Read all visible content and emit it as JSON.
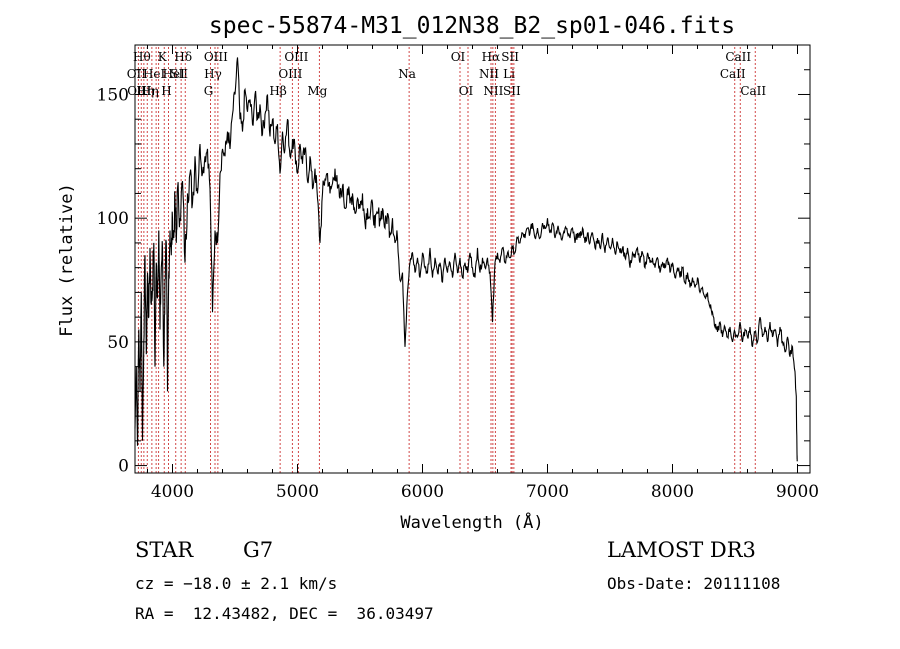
{
  "chart_data": {
    "type": "line",
    "title": "spec-55874-M31_012N38_B2_sp01-046.fits",
    "xlabel": "Wavelength (Å)",
    "ylabel": "Flux (relative)",
    "xlim": [
      3700,
      9100
    ],
    "ylim": [
      -3,
      170
    ],
    "xticks": [
      4000,
      5000,
      6000,
      7000,
      8000,
      9000
    ],
    "yticks": [
      0,
      50,
      100,
      150
    ],
    "grid": false,
    "series": [
      {
        "name": "flux",
        "points": [
          [
            3700,
            15
          ],
          [
            3710,
            40
          ],
          [
            3720,
            8
          ],
          [
            3730,
            55
          ],
          [
            3740,
            30
          ],
          [
            3750,
            70
          ],
          [
            3760,
            10
          ],
          [
            3770,
            50
          ],
          [
            3780,
            85
          ],
          [
            3790,
            45
          ],
          [
            3800,
            78
          ],
          [
            3810,
            60
          ],
          [
            3820,
            88
          ],
          [
            3830,
            65
          ],
          [
            3840,
            72
          ],
          [
            3850,
            90
          ],
          [
            3860,
            40
          ],
          [
            3870,
            82
          ],
          [
            3880,
            68
          ],
          [
            3890,
            95
          ],
          [
            3900,
            55
          ],
          [
            3910,
            80
          ],
          [
            3920,
            88
          ],
          [
            3930,
            40
          ],
          [
            3940,
            75
          ],
          [
            3950,
            90
          ],
          [
            3960,
            30
          ],
          [
            3970,
            78
          ],
          [
            3980,
            95
          ],
          [
            3990,
            85
          ],
          [
            4000,
            100
          ],
          [
            4010,
            92
          ],
          [
            4020,
            108
          ],
          [
            4030,
            90
          ],
          [
            4040,
            112
          ],
          [
            4060,
            100
          ],
          [
            4080,
            115
          ],
          [
            4100,
            82
          ],
          [
            4120,
            110
          ],
          [
            4140,
            118
          ],
          [
            4160,
            106
          ],
          [
            4180,
            125
          ],
          [
            4200,
            110
          ],
          [
            4220,
            130
          ],
          [
            4240,
            118
          ],
          [
            4260,
            125
          ],
          [
            4280,
            128
          ],
          [
            4300,
            112
          ],
          [
            4320,
            62
          ],
          [
            4340,
            95
          ],
          [
            4360,
            90
          ],
          [
            4380,
            118
          ],
          [
            4400,
            128
          ],
          [
            4420,
            125
          ],
          [
            4440,
            135
          ],
          [
            4460,
            128
          ],
          [
            4480,
            142
          ],
          [
            4500,
            150
          ],
          [
            4520,
            165
          ],
          [
            4540,
            140
          ],
          [
            4560,
            135
          ],
          [
            4580,
            152
          ],
          [
            4600,
            143
          ],
          [
            4620,
            148
          ],
          [
            4640,
            138
          ],
          [
            4660,
            150
          ],
          [
            4680,
            140
          ],
          [
            4700,
            146
          ],
          [
            4720,
            134
          ],
          [
            4740,
            142
          ],
          [
            4760,
            150
          ],
          [
            4780,
            133
          ],
          [
            4800,
            140
          ],
          [
            4820,
            130
          ],
          [
            4840,
            138
          ],
          [
            4860,
            118
          ],
          [
            4880,
            135
          ],
          [
            4900,
            128
          ],
          [
            4920,
            140
          ],
          [
            4940,
            125
          ],
          [
            4960,
            132
          ],
          [
            4980,
            128
          ],
          [
            5000,
            118
          ],
          [
            5020,
            130
          ],
          [
            5040,
            122
          ],
          [
            5060,
            128
          ],
          [
            5080,
            115
          ],
          [
            5100,
            125
          ],
          [
            5120,
            112
          ],
          [
            5140,
            120
          ],
          [
            5160,
            108
          ],
          [
            5180,
            90
          ],
          [
            5200,
            110
          ],
          [
            5220,
            116
          ],
          [
            5240,
            118
          ],
          [
            5260,
            110
          ],
          [
            5280,
            114
          ],
          [
            5300,
            120
          ],
          [
            5320,
            112
          ],
          [
            5340,
            108
          ],
          [
            5360,
            113
          ],
          [
            5380,
            104
          ],
          [
            5400,
            112
          ],
          [
            5420,
            106
          ],
          [
            5440,
            110
          ],
          [
            5460,
            102
          ],
          [
            5480,
            108
          ],
          [
            5500,
            104
          ],
          [
            5520,
            110
          ],
          [
            5540,
            98
          ],
          [
            5560,
            104
          ],
          [
            5580,
            100
          ],
          [
            5600,
            106
          ],
          [
            5620,
            96
          ],
          [
            5640,
            102
          ],
          [
            5660,
            100
          ],
          [
            5680,
            104
          ],
          [
            5700,
            96
          ],
          [
            5720,
            102
          ],
          [
            5740,
            94
          ],
          [
            5760,
            100
          ],
          [
            5780,
            90
          ],
          [
            5800,
            92
          ],
          [
            5820,
            75
          ],
          [
            5840,
            78
          ],
          [
            5860,
            48
          ],
          [
            5880,
            70
          ],
          [
            5900,
            82
          ],
          [
            5920,
            86
          ],
          [
            5940,
            78
          ],
          [
            5960,
            84
          ],
          [
            5980,
            76
          ],
          [
            6000,
            86
          ],
          [
            6020,
            80
          ],
          [
            6040,
            78
          ],
          [
            6060,
            88
          ],
          [
            6080,
            76
          ],
          [
            6100,
            84
          ],
          [
            6120,
            78
          ],
          [
            6140,
            82
          ],
          [
            6160,
            74
          ],
          [
            6180,
            84
          ],
          [
            6200,
            78
          ],
          [
            6220,
            82
          ],
          [
            6240,
            76
          ],
          [
            6260,
            86
          ],
          [
            6280,
            78
          ],
          [
            6300,
            84
          ],
          [
            6320,
            76
          ],
          [
            6340,
            82
          ],
          [
            6360,
            78
          ],
          [
            6380,
            86
          ],
          [
            6400,
            80
          ],
          [
            6420,
            76
          ],
          [
            6440,
            88
          ],
          [
            6460,
            78
          ],
          [
            6480,
            84
          ],
          [
            6500,
            80
          ],
          [
            6520,
            84
          ],
          [
            6540,
            78
          ],
          [
            6560,
            58
          ],
          [
            6580,
            82
          ],
          [
            6600,
            86
          ],
          [
            6620,
            82
          ],
          [
            6640,
            88
          ],
          [
            6660,
            82
          ],
          [
            6680,
            86
          ],
          [
            6700,
            84
          ],
          [
            6720,
            88
          ],
          [
            6740,
            86
          ],
          [
            6760,
            92
          ],
          [
            6780,
            90
          ],
          [
            6800,
            94
          ],
          [
            6820,
            92
          ],
          [
            6840,
            96
          ],
          [
            6860,
            94
          ],
          [
            6880,
            98
          ],
          [
            6900,
            92
          ],
          [
            6920,
            96
          ],
          [
            6940,
            92
          ],
          [
            6960,
            98
          ],
          [
            6980,
            96
          ],
          [
            7000,
            100
          ],
          [
            7020,
            94
          ],
          [
            7040,
            98
          ],
          [
            7060,
            92
          ],
          [
            7080,
            96
          ],
          [
            7100,
            94
          ],
          [
            7120,
            92
          ],
          [
            7140,
            96
          ],
          [
            7160,
            94
          ],
          [
            7180,
            92
          ],
          [
            7200,
            96
          ],
          [
            7220,
            90
          ],
          [
            7240,
            94
          ],
          [
            7260,
            92
          ],
          [
            7280,
            96
          ],
          [
            7300,
            90
          ],
          [
            7320,
            94
          ],
          [
            7340,
            90
          ],
          [
            7360,
            94
          ],
          [
            7380,
            88
          ],
          [
            7400,
            92
          ],
          [
            7420,
            88
          ],
          [
            7440,
            94
          ],
          [
            7460,
            86
          ],
          [
            7480,
            92
          ],
          [
            7500,
            88
          ],
          [
            7520,
            92
          ],
          [
            7540,
            86
          ],
          [
            7560,
            90
          ],
          [
            7580,
            86
          ],
          [
            7600,
            88
          ],
          [
            7620,
            84
          ],
          [
            7640,
            88
          ],
          [
            7660,
            80
          ],
          [
            7680,
            86
          ],
          [
            7700,
            84
          ],
          [
            7720,
            88
          ],
          [
            7740,
            82
          ],
          [
            7760,
            86
          ],
          [
            7780,
            80
          ],
          [
            7800,
            86
          ],
          [
            7820,
            82
          ],
          [
            7840,
            84
          ],
          [
            7860,
            80
          ],
          [
            7880,
            84
          ],
          [
            7900,
            78
          ],
          [
            7920,
            82
          ],
          [
            7940,
            80
          ],
          [
            7960,
            84
          ],
          [
            7980,
            78
          ],
          [
            8000,
            82
          ],
          [
            8020,
            76
          ],
          [
            8040,
            80
          ],
          [
            8060,
            76
          ],
          [
            8080,
            80
          ],
          [
            8100,
            74
          ],
          [
            8120,
            78
          ],
          [
            8140,
            72
          ],
          [
            8160,
            76
          ],
          [
            8180,
            72
          ],
          [
            8200,
            76
          ],
          [
            8220,
            70
          ],
          [
            8240,
            72
          ],
          [
            8260,
            68
          ],
          [
            8280,
            70
          ],
          [
            8300,
            64
          ],
          [
            8320,
            62
          ],
          [
            8340,
            56
          ],
          [
            8360,
            54
          ],
          [
            8380,
            58
          ],
          [
            8400,
            52
          ],
          [
            8420,
            56
          ],
          [
            8440,
            52
          ],
          [
            8460,
            56
          ],
          [
            8480,
            50
          ],
          [
            8500,
            54
          ],
          [
            8520,
            52
          ],
          [
            8540,
            58
          ],
          [
            8560,
            50
          ],
          [
            8580,
            55
          ],
          [
            8600,
            52
          ],
          [
            8620,
            56
          ],
          [
            8640,
            48
          ],
          [
            8660,
            54
          ],
          [
            8680,
            50
          ],
          [
            8700,
            60
          ],
          [
            8720,
            52
          ],
          [
            8740,
            56
          ],
          [
            8760,
            50
          ],
          [
            8780,
            58
          ],
          [
            8800,
            52
          ],
          [
            8820,
            55
          ],
          [
            8840,
            48
          ],
          [
            8860,
            56
          ],
          [
            8880,
            50
          ],
          [
            8900,
            46
          ],
          [
            8920,
            52
          ],
          [
            8940,
            44
          ],
          [
            8960,
            48
          ],
          [
            8980,
            38
          ],
          [
            8990,
            28
          ],
          [
            8996,
            5
          ],
          [
            8998,
            2
          ]
        ]
      }
    ],
    "line_marks": [
      {
        "x": 3727,
        "label": "OII",
        "row": 1
      },
      {
        "x": 3750,
        "label": "OIII",
        "row": 2
      },
      {
        "x": 3771,
        "label": "Hθ",
        "row": 0
      },
      {
        "x": 3798,
        "label": "Hη",
        "row": 2
      },
      {
        "x": 3835,
        "label": "Hη",
        "row": 2
      },
      {
        "x": 3869,
        "label": "HeI",
        "row": 1
      },
      {
        "x": 3889,
        "label": "",
        "row": 1
      },
      {
        "x": 3934,
        "label": "K",
        "row": 0
      },
      {
        "x": 3968,
        "label": "H",
        "row": 2
      },
      {
        "x": 4026,
        "label": "HeI",
        "row": 1
      },
      {
        "x": 4069,
        "label": "SII",
        "row": 1
      },
      {
        "x": 4102,
        "label": "Hδ",
        "row": 0
      },
      {
        "x": 4304,
        "label": "G",
        "row": 2
      },
      {
        "x": 4340,
        "label": "Hγ",
        "row": 1
      },
      {
        "x": 4363,
        "label": "OIII",
        "row": 0
      },
      {
        "x": 4861,
        "label": "Hβ",
        "row": 2
      },
      {
        "x": 4959,
        "label": "OIII",
        "row": 1
      },
      {
        "x": 5007,
        "label": "OIII",
        "row": 0
      },
      {
        "x": 5175,
        "label": "Mg",
        "row": 2
      },
      {
        "x": 5893,
        "label": "Na",
        "row": 1
      },
      {
        "x": 6300,
        "label": "OI",
        "row": 0
      },
      {
        "x": 6364,
        "label": "OI",
        "row": 2
      },
      {
        "x": 6548,
        "label": "NII",
        "row": 1
      },
      {
        "x": 6563,
        "label": "Hα",
        "row": 0
      },
      {
        "x": 6583,
        "label": "NII",
        "row": 2
      },
      {
        "x": 6708,
        "label": "Li",
        "row": 1
      },
      {
        "x": 6717,
        "label": "SII",
        "row": 0
      },
      {
        "x": 6731,
        "label": "SII",
        "row": 2
      },
      {
        "x": 8498,
        "label": "CaII",
        "row": 1
      },
      {
        "x": 8542,
        "label": "CaII",
        "row": 0
      },
      {
        "x": 8662,
        "label": "CaII",
        "row": 2
      }
    ]
  },
  "footer": {
    "object_class": "STAR",
    "subclass": "G7",
    "survey": "LAMOST DR3",
    "cz": "cz = −18.0 ± 2.1 km/s",
    "obs_date": "Obs-Date: 20111108",
    "coords": "RA =  12.43482, DEC =  36.03497"
  }
}
